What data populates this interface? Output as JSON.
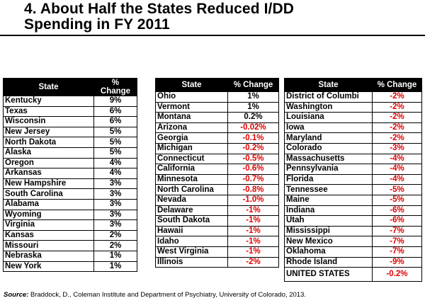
{
  "slide": {
    "title_line1": "4. About Half the States Reduced I/DD",
    "title_line2": "Spending in FY 2011"
  },
  "table_headers": {
    "state": "State",
    "change": "% Change"
  },
  "table1": [
    {
      "state": "Kentucky",
      "change": "9%"
    },
    {
      "state": "Texas",
      "change": "6%"
    },
    {
      "state": "Wisconsin",
      "change": "6%"
    },
    {
      "state": "New Jersey",
      "change": "5%"
    },
    {
      "state": "North Dakota",
      "change": "5%"
    },
    {
      "state": "Alaska",
      "change": "5%"
    },
    {
      "state": "Oregon",
      "change": "4%"
    },
    {
      "state": "Arkansas",
      "change": "4%"
    },
    {
      "state": "New Hampshire",
      "change": "3%"
    },
    {
      "state": "South Carolina",
      "change": "3%"
    },
    {
      "state": "Alabama",
      "change": "3%"
    },
    {
      "state": "Wyoming",
      "change": "3%"
    },
    {
      "state": "Virginia",
      "change": "3%"
    },
    {
      "state": "Kansas",
      "change": "2%"
    },
    {
      "state": "Missouri",
      "change": "2%"
    },
    {
      "state": "Nebraska",
      "change": "1%"
    },
    {
      "state": "New York",
      "change": "1%"
    }
  ],
  "table2": [
    {
      "state": "Ohio",
      "change": "1%"
    },
    {
      "state": "Vermont",
      "change": "1%"
    },
    {
      "state": "Montana",
      "change": "0.2%"
    },
    {
      "state": "Arizona",
      "change": "-0.02%"
    },
    {
      "state": "Georgia",
      "change": "-0.1%"
    },
    {
      "state": "Michigan",
      "change": "-0.2%"
    },
    {
      "state": "Connecticut",
      "change": "-0.5%"
    },
    {
      "state": "California",
      "change": "-0.6%"
    },
    {
      "state": "Minnesota",
      "change": "-0.7%"
    },
    {
      "state": "North Carolina",
      "change": "-0.8%"
    },
    {
      "state": "Nevada",
      "change": "-1.0%"
    },
    {
      "state": "Delaware",
      "change": "-1%"
    },
    {
      "state": "South Dakota",
      "change": "-1%"
    },
    {
      "state": "Hawaii",
      "change": "-1%"
    },
    {
      "state": "Idaho",
      "change": "-1%"
    },
    {
      "state": "West Virginia",
      "change": "-1%"
    },
    {
      "state": "Illinois",
      "change": "-2%"
    }
  ],
  "table3": [
    {
      "state": "District of Columbi",
      "change": "-2%"
    },
    {
      "state": "Washington",
      "change": "-2%"
    },
    {
      "state": "Louisiana",
      "change": "-2%"
    },
    {
      "state": "Iowa",
      "change": "-2%"
    },
    {
      "state": "Maryland",
      "change": "-2%"
    },
    {
      "state": "Colorado",
      "change": "-3%"
    },
    {
      "state": "Massachusetts",
      "change": "-4%"
    },
    {
      "state": "Pennsylvania",
      "change": "-4%"
    },
    {
      "state": "Florida",
      "change": "-4%"
    },
    {
      "state": "Tennessee",
      "change": "-5%"
    },
    {
      "state": "Maine",
      "change": "-5%"
    },
    {
      "state": "Indiana",
      "change": "-6%"
    },
    {
      "state": "Utah",
      "change": "-6%"
    },
    {
      "state": "Mississippi",
      "change": "-7%"
    },
    {
      "state": "New Mexico",
      "change": "-7%"
    },
    {
      "state": "Oklahoma",
      "change": "-7%"
    },
    {
      "state": "Rhode Island",
      "change": "-9%"
    }
  ],
  "total": {
    "state": "UNITED STATES",
    "change": "-0.2%"
  },
  "source": {
    "label": "Source:",
    "text": " Braddock, D., Coleman Institute and Department of Psychiatry, University of Colorado, 2013."
  },
  "colors": {
    "negative": "#e00000",
    "header_bg": "#000000"
  }
}
